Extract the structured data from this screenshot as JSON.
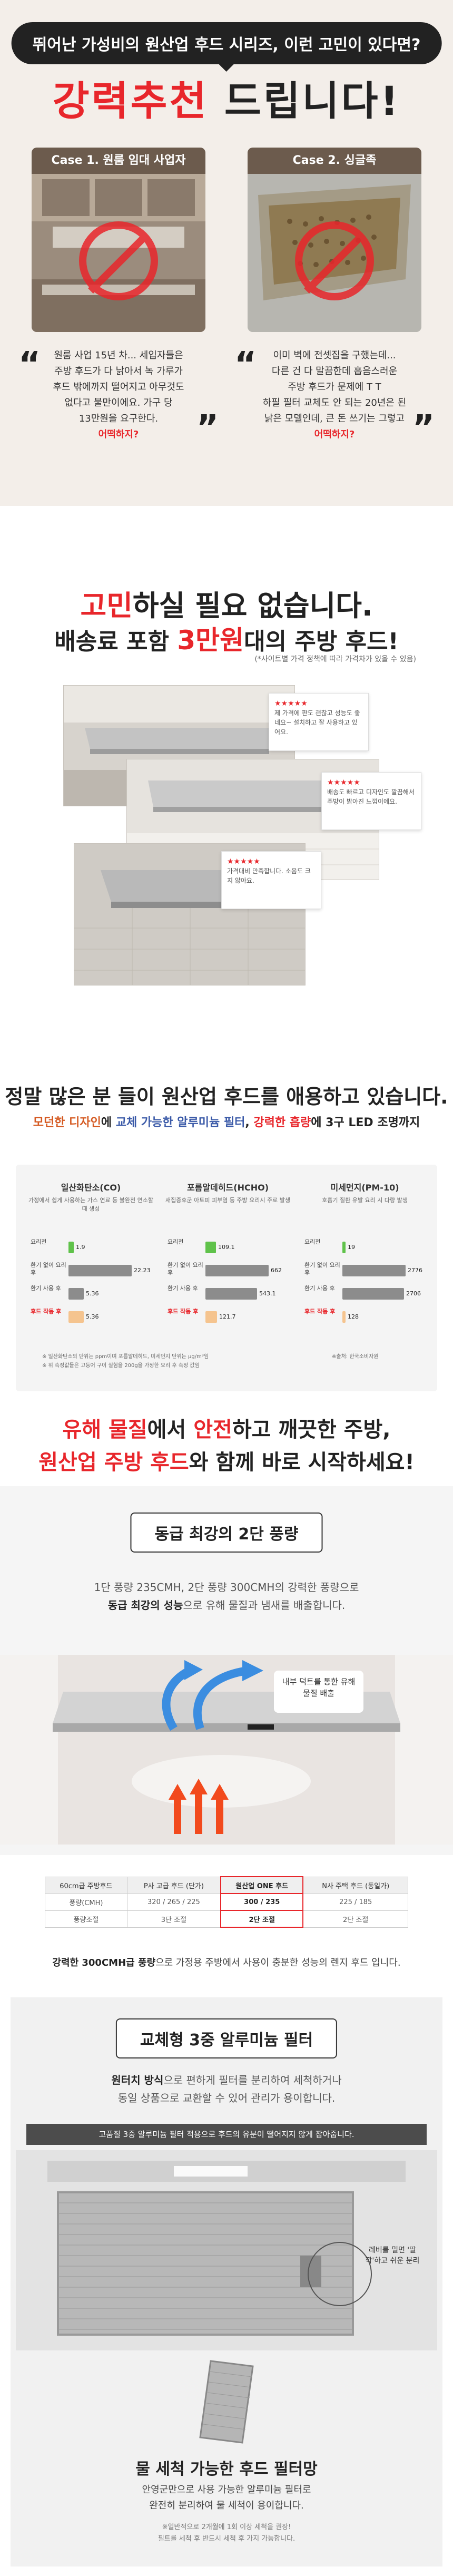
{
  "hero": {
    "badge": "뛰어난 가성비의 원산업 후드 시리즈, 이런 고민이 있다면?",
    "title_red": "강력추천",
    "title_black": "드립니다!"
  },
  "cases": [
    {
      "label": "Case 1. 원룸 임대 사업자",
      "quote_lines": [
        "원룸 사업 15년 차... 세입자들은",
        "주방 후드가 다 낡아서 녹 가루가",
        "후드 밖에까지 떨어지고 아무것도",
        "없다고 불만이에요. 가구 당",
        "13만원을 요구한다."
      ],
      "quote_red": "어떡하지?"
    },
    {
      "label": "Case 2. 싱글족",
      "quote_lines": [
        "이미 벽에 전셋집을 구했는데...",
        "다른 건 다 말끔한데 흡음스러운",
        "주방 후드가 문제에 T T",
        "하필 필터 교체도 안 되는 20년은 된",
        "낡은 모델인데, 큰 돈 쓰기는 그렇고"
      ],
      "quote_red": "어떡하지?"
    }
  ],
  "headline": {
    "line1_red": "고민",
    "line1_rest": "하실 필요 없습니다.",
    "line2_pre": "배송료 포함 ",
    "line2_red": "3만원",
    "line2_post": "대의 주방 후드!",
    "note": "(*사이트별 가격 정책에 따라 가격차가 있을 수 있음)"
  },
  "reviews": [
    {
      "stars": "★★★★★",
      "text": "제 가격에 판도 괜찮고 성능도 좋네요~ 설치하고 잘 사용하고 있어요."
    },
    {
      "stars": "★★★★★",
      "text": "배송도 빠르고 디자인도 깔끔해서 주방이 밝아진 느낌이에요."
    },
    {
      "stars": "★★★★★",
      "text": "가격대비 만족합니다. 소음도 크지 않아요."
    }
  ],
  "summary": {
    "line1": "정말 많은 분 들이 원산업 후드를 애용하고 있습니다.",
    "p1": "모던한 디자인",
    "p2": "에 ",
    "p3": "교체 가능한 알루미늄 필터",
    "p4": ", ",
    "p5": "강력한 흡량",
    "p6": "에 3구 LED 조명까지"
  },
  "chart_data": [
    {
      "type": "bar",
      "title": "일산화탄소(CO)",
      "desc": "가정에서 쉽게 사용하는 가스 연료 등 불완전 연소할 때 생성",
      "categories": [
        "요리전",
        "환기 없이 요리 후",
        "환기 사용 후",
        "후드 작동 후"
      ],
      "values": [
        1.9,
        22.23,
        5.36,
        5.36
      ]
    },
    {
      "type": "bar",
      "title": "포름알데히드(HCHO)",
      "desc": "새집증후군 아토피 피부염 등 주방 요리시 주로 발생",
      "categories": [
        "요리전",
        "환기 없이 요리 후",
        "환기 사용 후",
        "후드 작동 후"
      ],
      "values": [
        109.1,
        662.0,
        543.1,
        121.7
      ]
    },
    {
      "type": "bar",
      "title": "미세먼지(PM-10)",
      "desc": "호흡기 질환 유발 요리 시 다량 발생",
      "categories": [
        "요리전",
        "환기 없이 요리 후",
        "환기 사용 후",
        "후드 작동 후"
      ],
      "values": [
        19,
        2776,
        2706,
        128
      ]
    }
  ],
  "chart_footnotes": [
    "※ 일산화탄소의 단위는 ppm이며 포름알데히드, 미세먼지 단위는 μg/m³임",
    "※ 위 측정값들은 고등어 구이 실험을 200g을 가정한 요리 후 측정 값임",
    "※출처: 한국소비자원"
  ],
  "section4": {
    "l1_red1": "유해 물질",
    "l1_mid": "에서 ",
    "l1_red2": "안전",
    "l1_end": "하고 깨끗한 주방,",
    "l2_red": "원산업 주방 후드",
    "l2_end": "와 함께 바로 시작하세요!"
  },
  "power": {
    "pill": "동급 최강의 2단 풍량",
    "desc1": "1단 풍량 235CMH, 2단 풍량 300CMH의 강력한 풍량으로",
    "desc2_b": "동급 최강의 성능",
    "desc2_r": "으로 유해 물질과 냄새를 배출합니다.",
    "callout": "내부 덕트를 통한 유해 물질 배출",
    "table": {
      "headers": [
        "60cm급 주방후드",
        "P사 고급 후드 (단가)",
        "원산업 ONE 후드",
        "N사 주택 후드 (동일가)"
      ],
      "rows": [
        [
          "풍량(CMH)",
          "320 / 265 / 225",
          "300 / 235",
          "225 / 185"
        ],
        [
          "풍량조절",
          "3단 조절",
          "2단 조절",
          "2단 조절"
        ]
      ]
    },
    "caption_b": "강력한 300CMH급 풍량",
    "caption_rest": "으로 가정용 주방에서 사용이 충분한 성능의 렌지 후드 입니다."
  },
  "filter": {
    "pill": "교체형 3중 알루미늄 필터",
    "d1_b": "원터치 방식",
    "d1_rest": "으로 편하게 필터를 분리하여 세척하거나",
    "d2": "동일 상품으로 교환할 수 있어 관리가 용이합니다.",
    "note": "고품질 3중 알루미늄 필터 적용으로 후드의 유분이 떨어지지 않게 잡아줍니다.",
    "callout": "레버를 밀면 '딸깍'하고 쉬운 분리",
    "cap_title": "물 세척 가능한 후드 필터망",
    "cap1": "안영군만으로 사용 가능한 알루미늄 필터로",
    "cap2": "완전히 분리하여 물 세척이 용이합니다.",
    "cap3": "※일반적으로 2개월에 1회 이상 세척을 권장!",
    "cap4": "필트를 세척 후 반드시 세척 후 가지 가능합니다."
  },
  "colors": {
    "accent": "#e8262b",
    "orange": "#d55a22",
    "blue": "#3b5aa8",
    "dark": "#222222"
  }
}
